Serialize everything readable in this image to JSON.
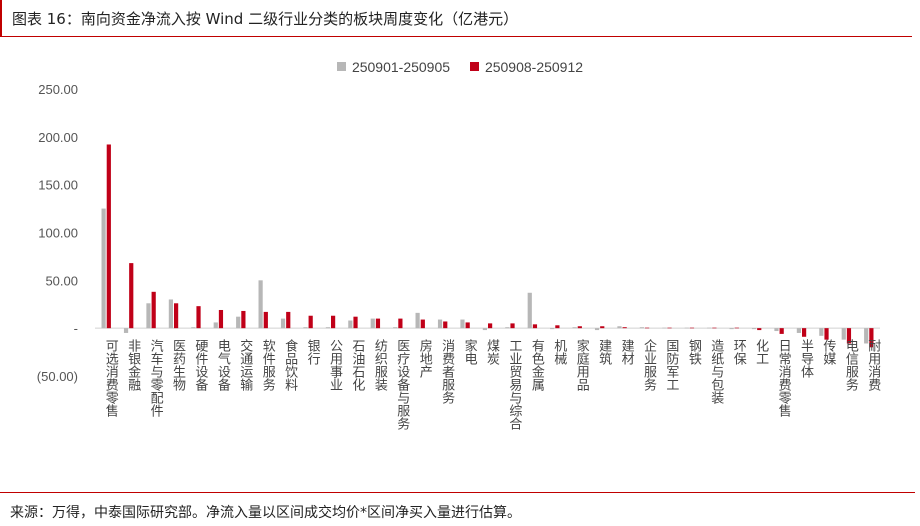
{
  "header": {
    "title": "图表 16：南向资金净流入按 Wind 二级行业分类的板块周度变化（亿港元）"
  },
  "footer": {
    "source": "来源：万得，中泰国际研究部。净流入量以区间成交均价*区间净买入量进行估算。"
  },
  "colors": {
    "series1": "#b7b7b7",
    "series2": "#c00018",
    "accent": "#c00000"
  },
  "chart_data": {
    "type": "bar",
    "ylim": [
      -50,
      250
    ],
    "yticks": [
      "250.00",
      "200.00",
      "150.00",
      "100.00",
      "50.00",
      "-",
      "(50.00)"
    ],
    "ytick_values": [
      250,
      200,
      150,
      100,
      50,
      0,
      -50
    ],
    "grid": false,
    "legend_position": "top-center",
    "categories": [
      "可选消费零售",
      "非银金融",
      "汽车与零配件",
      "医药生物",
      "硬件设备",
      "电气设备",
      "交通运输",
      "软件服务",
      "食品饮料",
      "银行",
      "公用事业",
      "石油石化",
      "纺织服装",
      "医疗设备与服务",
      "房地产",
      "消费者服务",
      "家电",
      "煤炭",
      "工业贸易与综合",
      "有色金属",
      "机械",
      "家庭用品",
      "建筑",
      "建材",
      "企业服务",
      "国防军工",
      "钢铁",
      "造纸与包装",
      "环保",
      "化工",
      "日常消费零售",
      "半导体",
      "传媒",
      "电信服务",
      "耐用消费"
    ],
    "series": [
      {
        "name": "250901-250905",
        "values": [
          125,
          -5,
          26,
          30,
          1,
          6,
          12,
          50,
          10,
          1,
          1,
          8,
          10,
          1,
          16,
          9,
          9,
          -2,
          1,
          37,
          -1,
          1,
          -2,
          2,
          1,
          0.5,
          0.5,
          0.5,
          -1,
          -1,
          -3,
          -5,
          -8,
          -12,
          -16
        ]
      },
      {
        "name": "250908-250912",
        "values": [
          192,
          68,
          38,
          26,
          23,
          19,
          18,
          17,
          17,
          13,
          13,
          12,
          10,
          10,
          9,
          7,
          6,
          5,
          5,
          4,
          3,
          2,
          2,
          1,
          0.5,
          0.5,
          0.5,
          0.5,
          0.5,
          -2,
          -6,
          -9,
          -12,
          -16,
          -20
        ]
      }
    ]
  }
}
